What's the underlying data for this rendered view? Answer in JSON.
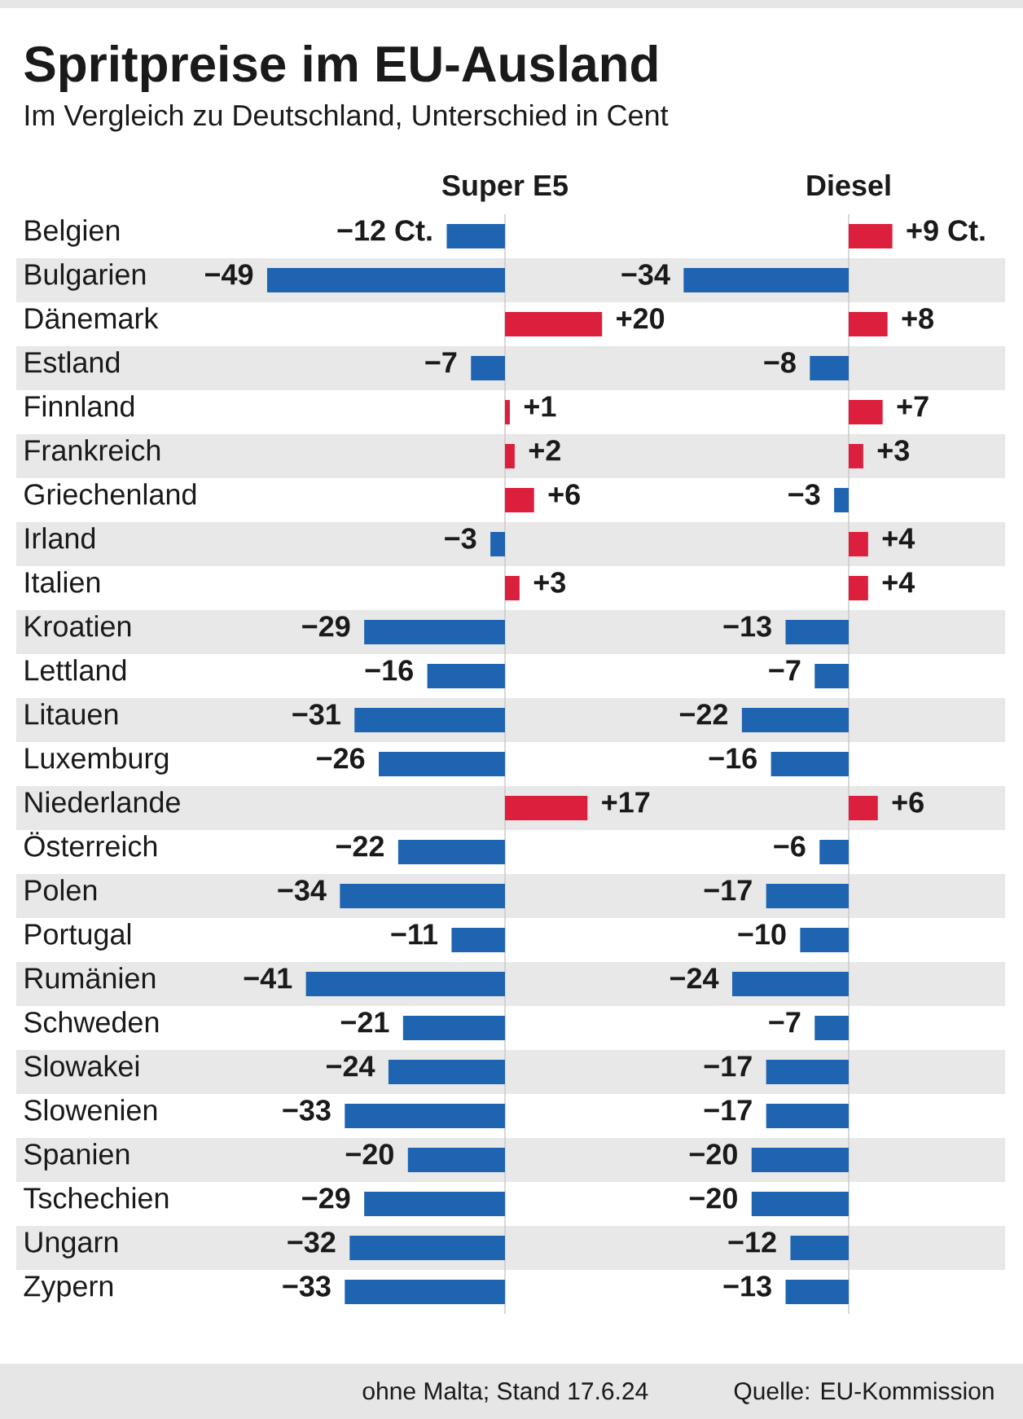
{
  "chart_data": [
    {
      "type": "bar",
      "orientation": "horizontal",
      "title": "Spritpreise im EU-Ausland",
      "subtitle": "Im Vergleich zu Deutschland, Unterschied in Cent",
      "categories": [
        "Belgien",
        "Bulgarien",
        "Dänemark",
        "Estland",
        "Finnland",
        "Frankreich",
        "Griechenland",
        "Irland",
        "Italien",
        "Kroatien",
        "Lettland",
        "Litauen",
        "Luxemburg",
        "Niederlande",
        "Österreich",
        "Polen",
        "Portugal",
        "Rumänien",
        "Schweden",
        "Slowakei",
        "Slowenien",
        "Spanien",
        "Tschechien",
        "Ungarn",
        "Zypern"
      ],
      "series": [
        {
          "name": "Super E5",
          "values": [
            -12,
            -49,
            20,
            -7,
            1,
            2,
            6,
            -3,
            3,
            -29,
            -16,
            -31,
            -26,
            17,
            -22,
            -34,
            -11,
            -41,
            -21,
            -24,
            -33,
            -20,
            -29,
            -32,
            -33
          ],
          "value_labels": [
            "−12 Ct.",
            "−49",
            "+20",
            "−7",
            "+1",
            "+2",
            "+6",
            "−3",
            "+3",
            "−29",
            "−16",
            "−31",
            "−26",
            "+17",
            "−22",
            "−34",
            "−11",
            "−41",
            "−21",
            "−24",
            "−33",
            "−20",
            "−29",
            "−32",
            "−33"
          ],
          "colors": [
            "#1e64b0",
            "#1e64b0",
            "#dc1f3c",
            "#1e64b0",
            "#dc1f3c",
            "#dc1f3c",
            "#dc1f3c",
            "#1e64b0",
            "#dc1f3c",
            "#1e64b0",
            "#1e64b0",
            "#1e64b0",
            "#1e64b0",
            "#dc1f3c",
            "#1e64b0",
            "#1e64b0",
            "#1e64b0",
            "#1e64b0",
            "#1e64b0",
            "#1e64b0",
            "#1e64b0",
            "#1e64b0",
            "#1e64b0",
            "#1e64b0",
            "#1e64b0"
          ]
        }
      ],
      "bands": [
        {
          "axis": "y",
          "from": "Bulgarien",
          "to": "Bulgarien",
          "color": "#e8e8e8"
        },
        {
          "axis": "y",
          "from": "Estland",
          "to": "Estland",
          "color": "#e8e8e8"
        },
        {
          "axis": "y",
          "from": "Frankreich",
          "to": "Frankreich",
          "color": "#e8e8e8"
        },
        {
          "axis": "y",
          "from": "Irland",
          "to": "Irland",
          "color": "#e8e8e8"
        },
        {
          "axis": "y",
          "from": "Kroatien",
          "to": "Kroatien",
          "color": "#e8e8e8"
        },
        {
          "axis": "y",
          "from": "Litauen",
          "to": "Litauen",
          "color": "#e8e8e8"
        },
        {
          "axis": "y",
          "from": "Niederlande",
          "to": "Niederlande",
          "color": "#e8e8e8"
        },
        {
          "axis": "y",
          "from": "Polen",
          "to": "Polen",
          "color": "#e8e8e8"
        },
        {
          "axis": "y",
          "from": "Rumänien",
          "to": "Rumänien",
          "color": "#e8e8e8"
        },
        {
          "axis": "y",
          "from": "Slowakei",
          "to": "Slowakei",
          "color": "#e8e8e8"
        },
        {
          "axis": "y",
          "from": "Spanien",
          "to": "Spanien",
          "color": "#e8e8e8"
        },
        {
          "axis": "y",
          "from": "Ungarn",
          "to": "Ungarn",
          "color": "#e8e8e8"
        }
      ],
      "tick_labels": "y",
      "annotations": [
        "ohne Malta; Stand 17.6.24",
        "Quelle: EU-Kommission"
      ]
    },
    {
      "type": "bar",
      "orientation": "horizontal",
      "categories": [
        "Belgien",
        "Bulgarien",
        "Dänemark",
        "Estland",
        "Finnland",
        "Frankreich",
        "Griechenland",
        "Irland",
        "Italien",
        "Kroatien",
        "Lettland",
        "Litauen",
        "Luxemburg",
        "Niederlande",
        "Österreich",
        "Polen",
        "Portugal",
        "Rumänien",
        "Schweden",
        "Slowakei",
        "Slowenien",
        "Spanien",
        "Tschechien",
        "Ungarn",
        "Zypern"
      ],
      "series": [
        {
          "name": "Diesel",
          "values": [
            9,
            -34,
            8,
            -8,
            7,
            3,
            -3,
            4,
            4,
            -13,
            -7,
            -22,
            -16,
            6,
            -6,
            -17,
            -10,
            -24,
            -7,
            -17,
            -17,
            -20,
            -20,
            -12,
            -13
          ],
          "value_labels": [
            "+9 Ct.",
            "−34",
            "+8",
            "−8",
            "+7",
            "+3",
            "−3",
            "+4",
            "+4",
            "−13",
            "−7",
            "−22",
            "−16",
            "+6",
            "−6",
            "−17",
            "−10",
            "−24",
            "−7",
            "−17",
            "−17",
            "−20",
            "−20",
            "−12",
            "−13"
          ],
          "colors": [
            "#dc1f3c",
            "#1e64b0",
            "#dc1f3c",
            "#1e64b0",
            "#dc1f3c",
            "#dc1f3c",
            "#1e64b0",
            "#dc1f3c",
            "#dc1f3c",
            "#1e64b0",
            "#1e64b0",
            "#1e64b0",
            "#1e64b0",
            "#dc1f3c",
            "#1e64b0",
            "#1e64b0",
            "#1e64b0",
            "#1e64b0",
            "#1e64b0",
            "#1e64b0",
            "#1e64b0",
            "#1e64b0",
            "#1e64b0",
            "#1e64b0",
            "#1e64b0"
          ]
        }
      ],
      "bands": [
        {
          "axis": "y",
          "from": "Bulgarien",
          "to": "Bulgarien",
          "color": "#e8e8e8"
        },
        {
          "axis": "y",
          "from": "Estland",
          "to": "Estland",
          "color": "#e8e8e8"
        },
        {
          "axis": "y",
          "from": "Frankreich",
          "to": "Frankreich",
          "color": "#e8e8e8"
        },
        {
          "axis": "y",
          "from": "Irland",
          "to": "Irland",
          "color": "#e8e8e8"
        },
        {
          "axis": "y",
          "from": "Kroatien",
          "to": "Kroatien",
          "color": "#e8e8e8"
        },
        {
          "axis": "y",
          "from": "Litauen",
          "to": "Litauen",
          "color": "#e8e8e8"
        },
        {
          "axis": "y",
          "from": "Niederlande",
          "to": "Niederlande",
          "color": "#e8e8e8"
        },
        {
          "axis": "y",
          "from": "Polen",
          "to": "Polen",
          "color": "#e8e8e8"
        },
        {
          "axis": "y",
          "from": "Rumänien",
          "to": "Rumänien",
          "color": "#e8e8e8"
        },
        {
          "axis": "y",
          "from": "Slowakei",
          "to": "Slowakei",
          "color": "#e8e8e8"
        },
        {
          "axis": "y",
          "from": "Spanien",
          "to": "Spanien",
          "color": "#e8e8e8"
        },
        {
          "axis": "y",
          "from": "Ungarn",
          "to": "Ungarn",
          "color": "#e8e8e8"
        }
      ],
      "tick_labels": false
    }
  ]
}
